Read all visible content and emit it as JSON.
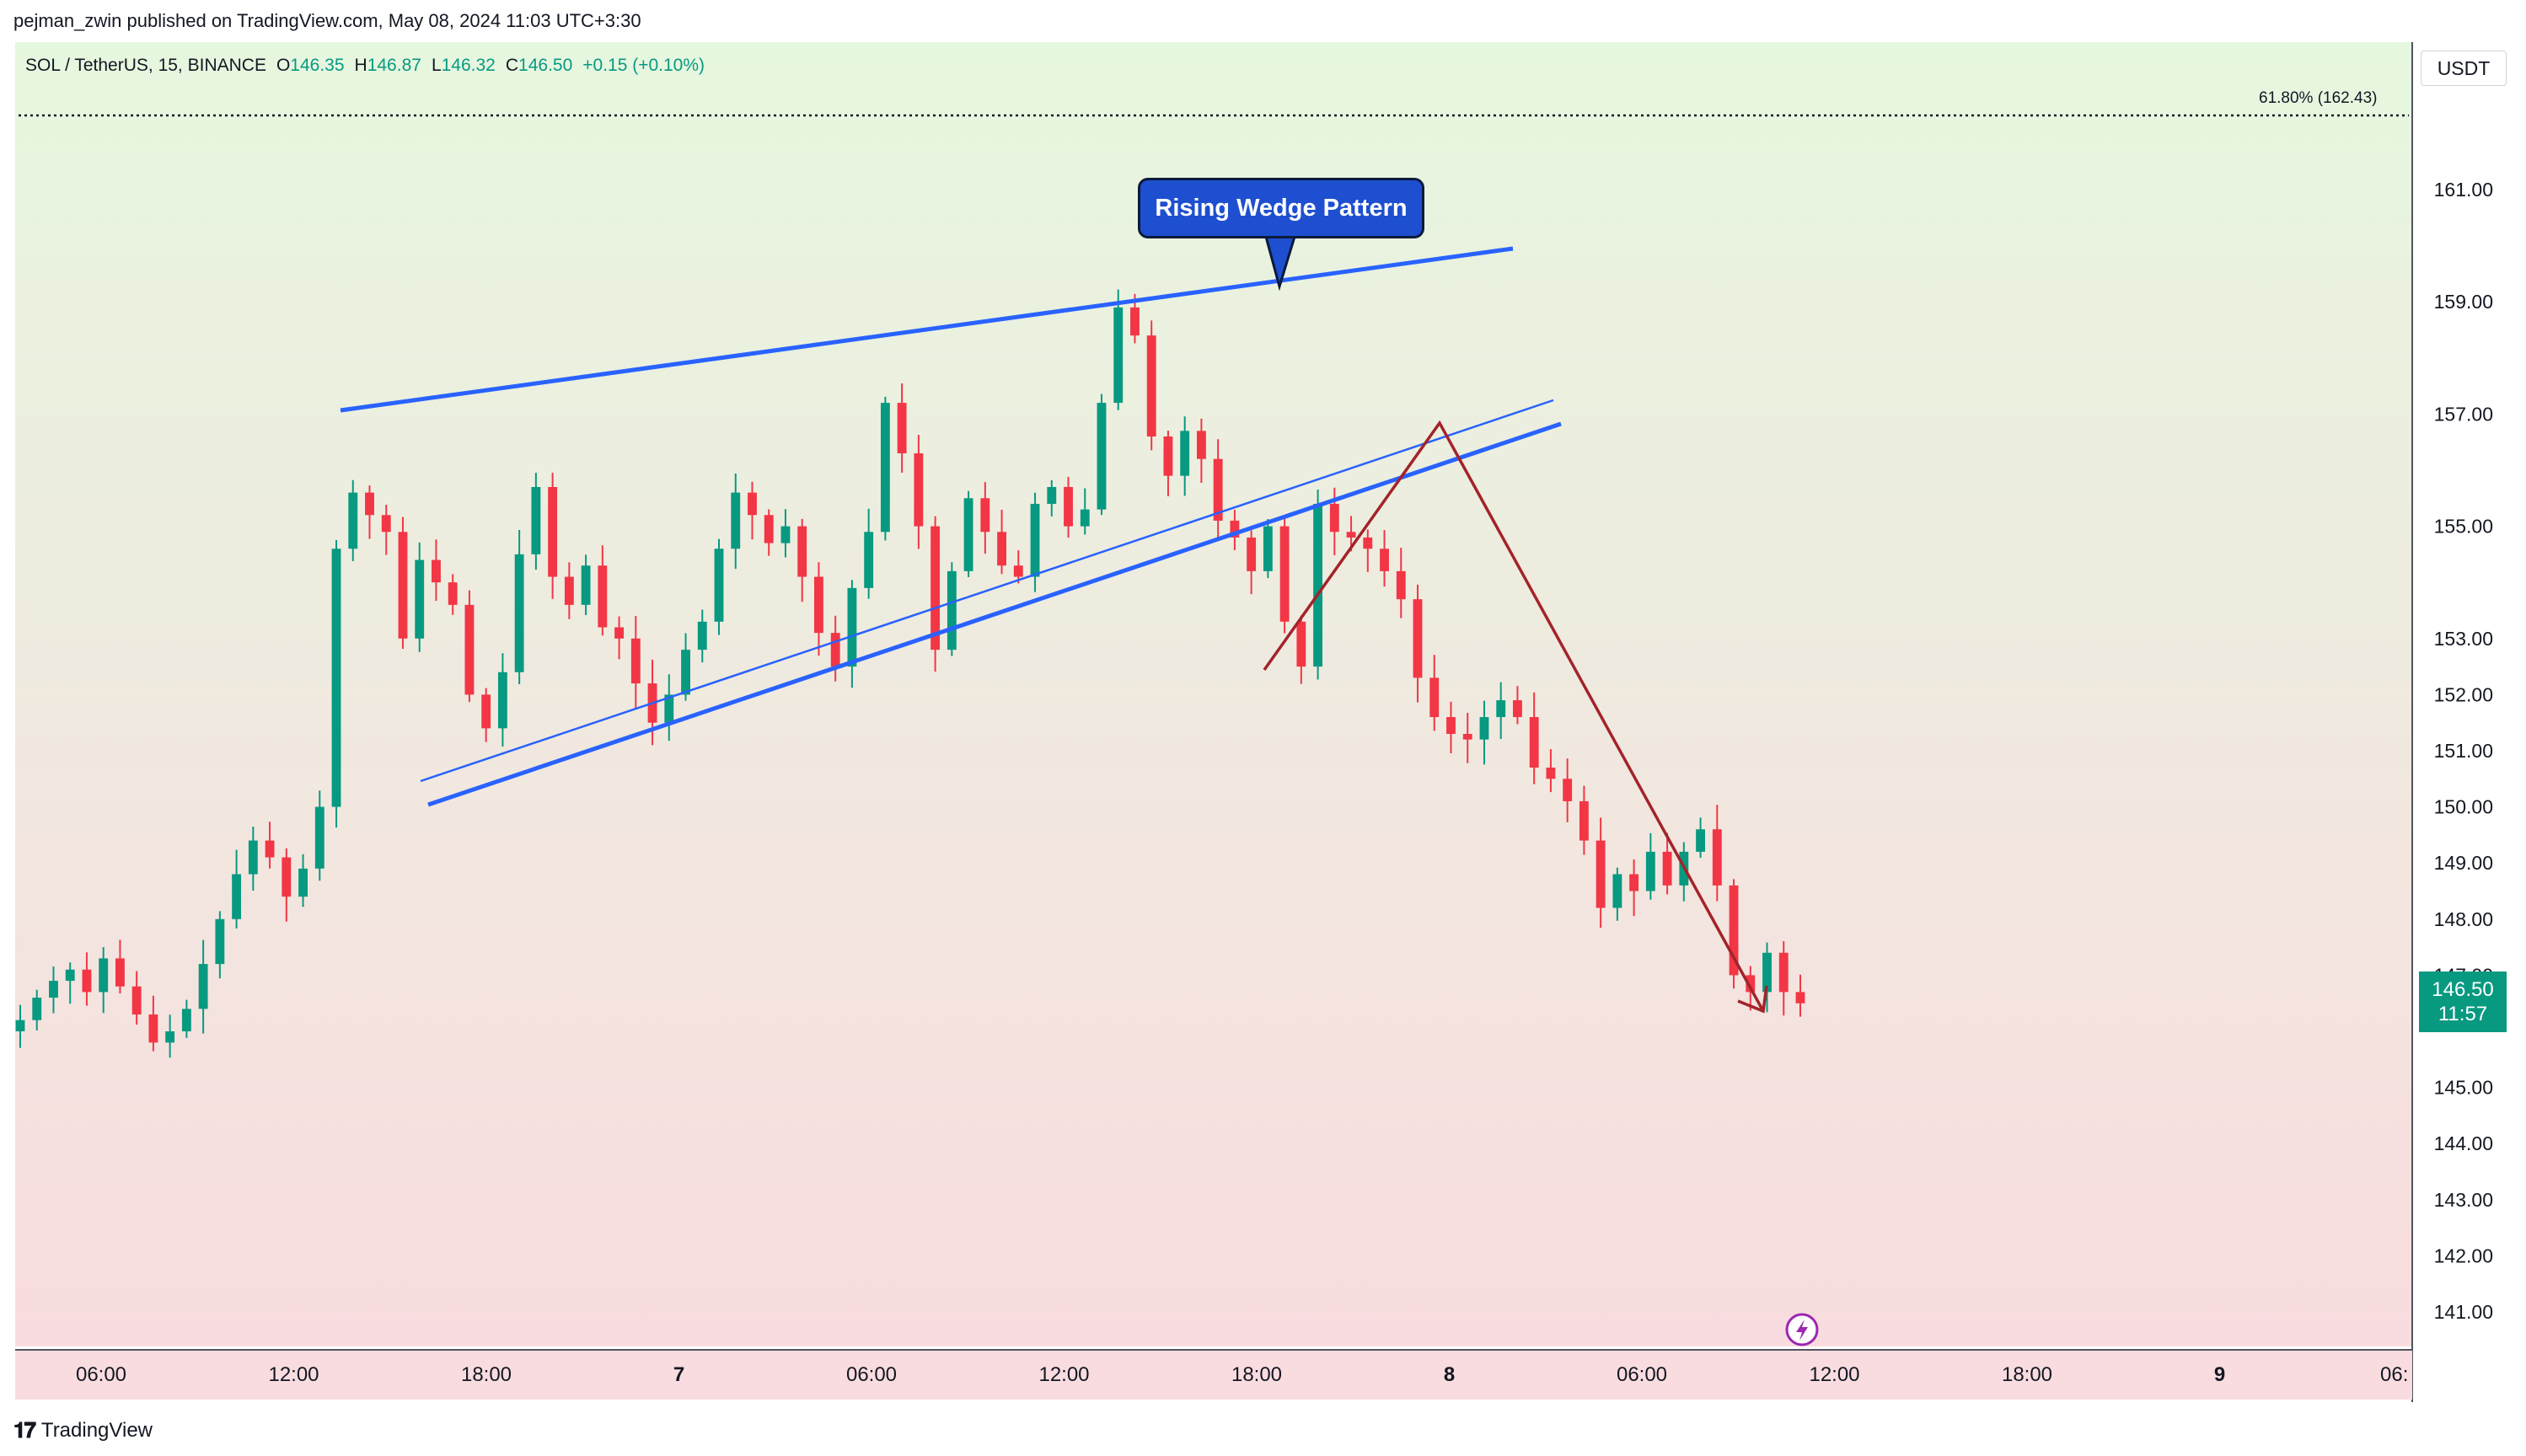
{
  "header": {
    "publisher": "pejman_zwin published on TradingView.com, May 08, 2024 11:03 UTC+3:30"
  },
  "legend": {
    "symbol": "SOL / TetherUS, 15, BINANCE",
    "o_label": "O",
    "o_value": "146.35",
    "h_label": "H",
    "h_value": "146.87",
    "l_label": "L",
    "l_value": "146.32",
    "c_label": "C",
    "c_value": "146.50",
    "change": "+0.15 (+0.10%)"
  },
  "currency": "USDT",
  "fib_label": "61.80% (162.43)",
  "annotation": {
    "label": "Rising Wedge Pattern"
  },
  "last_price": {
    "price": "146.50",
    "countdown": "11:57"
  },
  "footer": {
    "brand": "TradingView"
  },
  "colors": {
    "up": "#089981",
    "down": "#f23645",
    "wedge": "#2962ff",
    "zigzag": "#a3232a",
    "bg_top": "#e6f7df",
    "bg_bottom": "#f9dcdf"
  },
  "chart_data": {
    "type": "candlestick",
    "symbol": "SOL / TetherUS",
    "interval": "15",
    "exchange": "BINANCE",
    "ylim": [
      140.5,
      163.5
    ],
    "y_tick_labels": [
      "161.00",
      "159.00",
      "157.00",
      "155.00",
      "153.00",
      "152.00",
      "151.00",
      "150.00",
      "149.00",
      "148.00",
      "147.00",
      "145.00",
      "144.00",
      "143.00",
      "142.00",
      "141.00"
    ],
    "x_tick_labels": [
      "06:00",
      "12:00",
      "18:00",
      "7",
      "06:00",
      "12:00",
      "18:00",
      "8",
      "06:00",
      "12:00",
      "18:00",
      "9",
      "06:"
    ],
    "candles_close": [
      146.2,
      146.6,
      146.9,
      147.1,
      146.7,
      147.3,
      146.8,
      146.3,
      145.8,
      146.0,
      146.4,
      147.2,
      148.0,
      148.8,
      149.4,
      149.1,
      148.4,
      148.9,
      150.0,
      154.6,
      155.6,
      155.2,
      154.9,
      153.0,
      154.4,
      154.0,
      153.6,
      152.0,
      151.4,
      152.4,
      154.5,
      155.7,
      154.1,
      153.6,
      154.3,
      153.2,
      153.0,
      152.2,
      151.5,
      152.0,
      152.8,
      153.3,
      154.6,
      155.6,
      155.2,
      154.7,
      155.0,
      154.1,
      153.1,
      152.5,
      153.9,
      154.9,
      157.2,
      156.3,
      155.0,
      152.8,
      154.2,
      155.5,
      154.9,
      154.3,
      154.1,
      155.4,
      155.7,
      155.0,
      155.3,
      157.2,
      158.9,
      158.4,
      156.6,
      155.9,
      156.7,
      156.2,
      155.1,
      154.8,
      154.2,
      155.0,
      153.3,
      152.5,
      155.4,
      154.9,
      154.8,
      154.6,
      154.2,
      153.7,
      152.3,
      151.6,
      151.3,
      151.2,
      151.6,
      151.9,
      151.6,
      150.7,
      150.5,
      150.1,
      149.4,
      148.2,
      148.8,
      148.5,
      149.2,
      148.6,
      149.2,
      149.6,
      148.6,
      147.0,
      146.7,
      147.4,
      146.7,
      146.5
    ],
    "annotations": [
      "Rising Wedge Pattern",
      "61.80% (162.43)"
    ]
  }
}
